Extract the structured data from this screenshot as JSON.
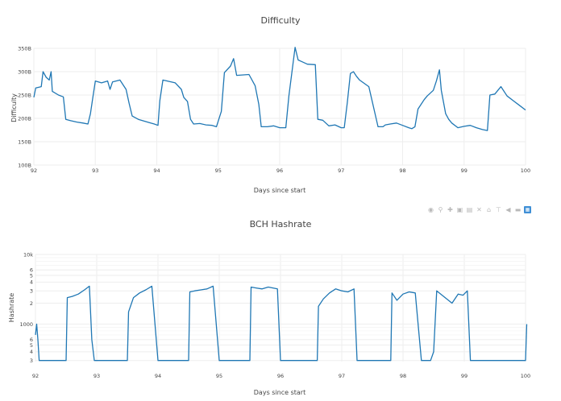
{
  "chart_data": [
    {
      "type": "line",
      "title": "Difficulty",
      "xlabel": "Days since start",
      "ylabel": "Difficulty",
      "xlim": [
        92,
        100
      ],
      "ylim": [
        100,
        350
      ],
      "x_ticks": [
        "92",
        "93",
        "94",
        "95",
        "96",
        "97",
        "98",
        "99",
        "100"
      ],
      "y_ticks": [
        "100B",
        "150B",
        "200B",
        "250B",
        "300B",
        "350B"
      ],
      "series": [
        {
          "x": [
            92.0,
            92.03,
            92.12,
            92.15,
            92.2,
            92.25,
            92.28,
            92.3,
            92.4,
            92.48,
            92.52,
            92.6,
            92.7,
            92.8,
            92.88,
            92.92,
            92.96,
            93.0,
            93.1,
            93.2,
            93.24,
            93.28,
            93.4,
            93.5,
            93.55,
            93.6,
            93.7,
            93.8,
            93.9,
            93.96,
            94.02,
            94.05,
            94.1,
            94.3,
            94.4,
            94.44,
            94.5,
            94.55,
            94.6,
            94.7,
            94.8,
            94.9,
            94.97,
            95.05,
            95.1,
            95.2,
            95.25,
            95.3,
            95.5,
            95.6,
            95.66,
            95.7,
            95.8,
            95.9,
            96.0,
            96.1,
            96.15,
            96.25,
            96.3,
            96.35,
            96.45,
            96.58,
            96.62,
            96.7,
            96.8,
            96.9,
            97.0,
            97.05,
            97.1,
            97.15,
            97.2,
            97.25,
            97.3,
            97.45,
            97.6,
            97.68,
            97.72,
            97.8,
            97.9,
            98.0,
            98.1,
            98.15,
            98.2,
            98.25,
            98.35,
            98.4,
            98.5,
            98.55,
            98.6,
            98.63,
            98.7,
            98.75,
            98.8,
            98.9,
            99.0,
            99.1,
            99.2,
            99.3,
            99.38,
            99.42,
            99.5,
            99.55,
            99.6,
            99.7,
            99.8,
            99.9,
            100.0
          ],
          "y": [
            245,
            265,
            268,
            300,
            288,
            282,
            300,
            258,
            250,
            246,
            198,
            195,
            192,
            190,
            188,
            210,
            245,
            280,
            276,
            280,
            262,
            278,
            282,
            262,
            232,
            205,
            198,
            194,
            190,
            188,
            185,
            238,
            282,
            276,
            262,
            245,
            236,
            198,
            188,
            189,
            186,
            185,
            182,
            215,
            298,
            312,
            328,
            292,
            294,
            270,
            230,
            182,
            182,
            184,
            180,
            180,
            248,
            352,
            325,
            322,
            316,
            315,
            198,
            196,
            184,
            186,
            180,
            180,
            234,
            296,
            300,
            290,
            282,
            268,
            182,
            182,
            186,
            188,
            190,
            185,
            180,
            178,
            182,
            220,
            240,
            248,
            260,
            280,
            304,
            260,
            210,
            198,
            190,
            180,
            183,
            185,
            180,
            176,
            174,
            250,
            252,
            260,
            268,
            248,
            238,
            228,
            218
          ]
        }
      ]
    },
    {
      "type": "line",
      "title": "BCH Hashrate",
      "xlabel": "Days since start",
      "ylabel": "Hashrate",
      "xlim": [
        92,
        100
      ],
      "scale_y": "log",
      "x_ticks": [
        "92",
        "93",
        "94",
        "95",
        "96",
        "97",
        "98",
        "99",
        "100"
      ],
      "y_ticks": [
        "10k",
        "6",
        "5",
        "4",
        "3",
        "2",
        "1000",
        "6",
        "5",
        "4",
        "3"
      ],
      "series": [
        {
          "x": [
            92.0,
            92.02,
            92.04,
            92.06,
            92.5,
            92.52,
            92.6,
            92.7,
            92.8,
            92.88,
            92.92,
            92.96,
            93.5,
            93.52,
            93.6,
            93.7,
            93.8,
            93.9,
            94.0,
            94.05,
            94.5,
            94.52,
            94.6,
            94.7,
            94.8,
            94.9,
            95.0,
            95.1,
            95.5,
            95.52,
            95.6,
            95.7,
            95.8,
            95.95,
            96.0,
            96.1,
            96.6,
            96.62,
            96.7,
            96.8,
            96.9,
            97.0,
            97.1,
            97.2,
            97.25,
            97.3,
            97.8,
            97.82,
            97.9,
            98.0,
            98.1,
            98.2,
            98.3,
            98.4,
            98.45,
            98.5,
            98.55,
            98.8,
            98.9,
            98.98,
            99.05,
            99.1,
            99.2,
            99.3,
            99.35,
            99.37,
            99.4,
            100.0,
            100.02
          ],
          "y": [
            700,
            1000,
            600,
            300,
            300,
            2400,
            2500,
            2700,
            3100,
            3500,
            600,
            300,
            300,
            1500,
            2400,
            2800,
            3100,
            3500,
            300,
            300,
            300,
            2900,
            3000,
            3100,
            3200,
            3500,
            300,
            300,
            300,
            3400,
            3300,
            3200,
            3400,
            3200,
            300,
            300,
            300,
            1800,
            2300,
            2800,
            3200,
            3000,
            2900,
            3200,
            300,
            300,
            300,
            2800,
            2200,
            2700,
            2900,
            2800,
            300,
            300,
            300,
            400,
            3000,
            2000,
            2700,
            2600,
            3000,
            300,
            300,
            300,
            300,
            300,
            300,
            300,
            1000
          ]
        }
      ]
    }
  ],
  "modebar": {
    "icons": [
      "camera-icon",
      "zoom-icon",
      "pan-icon",
      "zoom-in-icon",
      "zoom-out-icon",
      "autoscale-icon",
      "reset-axes-icon",
      "spike-lines-icon",
      "hover-closest-icon",
      "hover-compare-icon",
      "plotly-logo-icon"
    ]
  }
}
